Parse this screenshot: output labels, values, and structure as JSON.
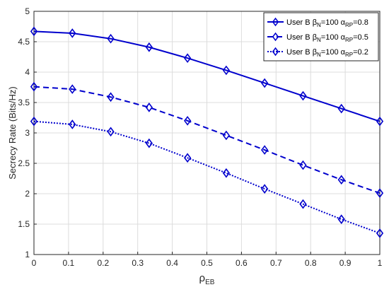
{
  "chart_data": {
    "type": "line",
    "ylabel": "Secrecy Rate (Bits/Hz)",
    "xlabel": {
      "symbol": "ρ",
      "sub": "EB"
    },
    "xlim": [
      0,
      1
    ],
    "ylim": [
      1,
      5
    ],
    "xticks": [
      "0",
      "0.1",
      "0.2",
      "0.3",
      "0.4",
      "0.5",
      "0.6",
      "0.7",
      "0.8",
      "0.9",
      "1"
    ],
    "yticks": [
      "1",
      "1.5",
      "2",
      "2.5",
      "3",
      "3.5",
      "4",
      "4.5",
      "5"
    ],
    "grid": true,
    "legend_position": "top-right",
    "line_color": "#0000cd",
    "x": [
      0,
      0.111,
      0.222,
      0.333,
      0.444,
      0.556,
      0.667,
      0.778,
      0.889,
      1.0
    ],
    "series": [
      {
        "legend": {
          "user": "User B ",
          "beta": "β",
          "beta_sub": "N",
          "beta_val": "=100 ",
          "alpha": "α",
          "alpha_sub": "RP",
          "alpha_val": "=0.8"
        },
        "style": "solid",
        "values": [
          4.67,
          4.64,
          4.55,
          4.41,
          4.23,
          4.03,
          3.82,
          3.61,
          3.4,
          3.19
        ]
      },
      {
        "legend": {
          "user": "User B ",
          "beta": "β",
          "beta_sub": "N",
          "beta_val": "=100 ",
          "alpha": "α",
          "alpha_sub": "RP",
          "alpha_val": "=0.5"
        },
        "style": "dashed",
        "values": [
          3.76,
          3.72,
          3.59,
          3.42,
          3.2,
          2.96,
          2.72,
          2.47,
          2.23,
          2.01
        ]
      },
      {
        "legend": {
          "user": "User B ",
          "beta": "β",
          "beta_sub": "N",
          "beta_val": "=100 ",
          "alpha": "α",
          "alpha_sub": "RP",
          "alpha_val": "=0.2"
        },
        "style": "dotted",
        "values": [
          3.19,
          3.14,
          3.02,
          2.83,
          2.59,
          2.34,
          2.08,
          1.83,
          1.58,
          1.35
        ]
      }
    ]
  }
}
